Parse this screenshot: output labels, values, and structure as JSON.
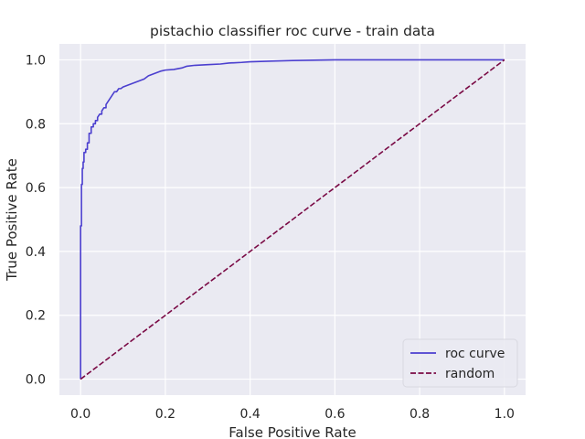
{
  "chart_data": {
    "type": "line",
    "title": "pistachio classifier roc curve - train data",
    "xlabel": "False Positive Rate",
    "ylabel": "True Positive Rate",
    "xlim": [
      -0.05,
      1.05
    ],
    "ylim": [
      -0.05,
      1.05
    ],
    "xticks": [
      0.0,
      0.2,
      0.4,
      0.6,
      0.8,
      1.0
    ],
    "yticks": [
      0.0,
      0.2,
      0.4,
      0.6,
      0.8,
      1.0
    ],
    "xtick_labels": [
      "0.0",
      "0.2",
      "0.4",
      "0.6",
      "0.8",
      "1.0"
    ],
    "ytick_labels": [
      "0.0",
      "0.2",
      "0.4",
      "0.6",
      "0.8",
      "1.0"
    ],
    "grid": true,
    "legend_position": "lower-right",
    "series": [
      {
        "name": "roc curve",
        "style": "solid",
        "color": "#4b3fcf",
        "x": [
          0.0,
          0.0,
          0.002,
          0.002,
          0.004,
          0.004,
          0.006,
          0.006,
          0.008,
          0.008,
          0.012,
          0.012,
          0.016,
          0.016,
          0.02,
          0.02,
          0.025,
          0.025,
          0.03,
          0.03,
          0.035,
          0.035,
          0.04,
          0.04,
          0.045,
          0.05,
          0.05,
          0.055,
          0.06,
          0.06,
          0.065,
          0.07,
          0.075,
          0.08,
          0.085,
          0.09,
          0.095,
          0.1,
          0.11,
          0.12,
          0.13,
          0.14,
          0.15,
          0.16,
          0.17,
          0.18,
          0.19,
          0.2,
          0.22,
          0.24,
          0.25,
          0.27,
          0.3,
          0.33,
          0.35,
          0.38,
          0.4,
          0.45,
          0.5,
          0.55,
          0.6,
          0.7,
          0.8,
          0.9,
          1.0
        ],
        "y": [
          0.0,
          0.48,
          0.48,
          0.61,
          0.61,
          0.66,
          0.66,
          0.68,
          0.68,
          0.71,
          0.71,
          0.72,
          0.72,
          0.74,
          0.74,
          0.77,
          0.77,
          0.79,
          0.79,
          0.8,
          0.8,
          0.81,
          0.81,
          0.82,
          0.83,
          0.83,
          0.84,
          0.85,
          0.85,
          0.86,
          0.87,
          0.88,
          0.89,
          0.9,
          0.9,
          0.91,
          0.91,
          0.915,
          0.92,
          0.925,
          0.93,
          0.935,
          0.94,
          0.95,
          0.955,
          0.96,
          0.965,
          0.968,
          0.97,
          0.975,
          0.98,
          0.983,
          0.985,
          0.987,
          0.99,
          0.992,
          0.994,
          0.996,
          0.998,
          0.999,
          1.0,
          1.0,
          1.0,
          1.0,
          1.0
        ]
      },
      {
        "name": "random",
        "style": "dashed",
        "color": "#7a0a45",
        "x": [
          0.0,
          1.0
        ],
        "y": [
          0.0,
          1.0
        ]
      }
    ]
  }
}
